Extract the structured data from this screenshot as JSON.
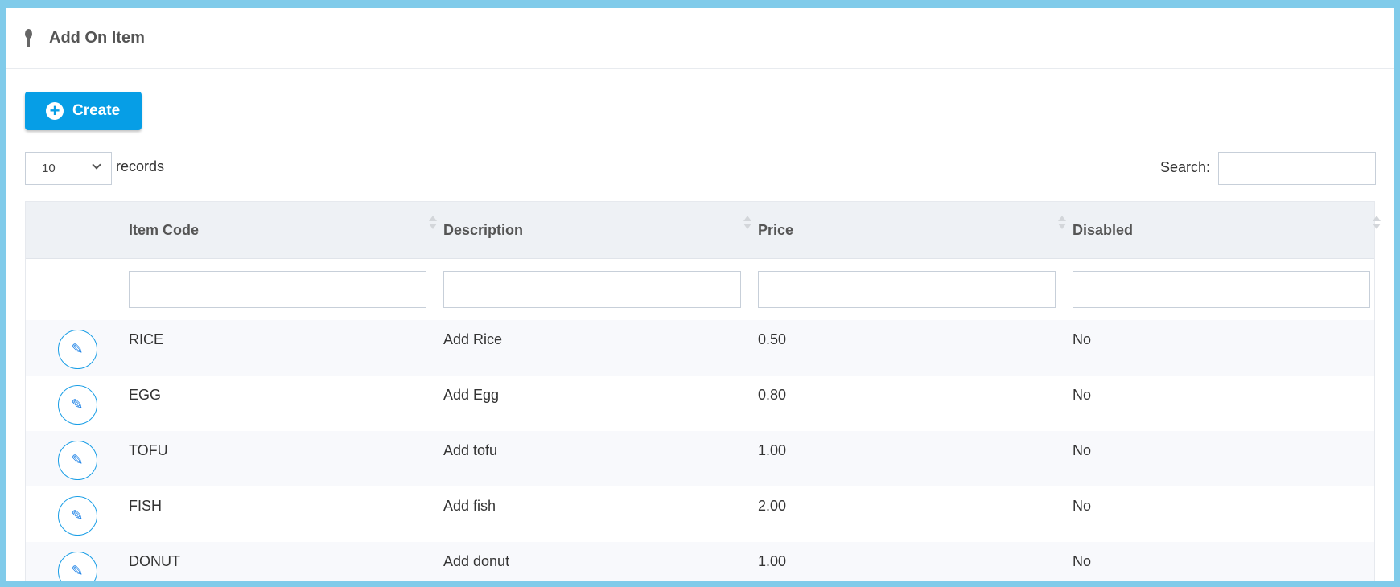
{
  "header": {
    "title": "Add On Item",
    "icon": "spoon-icon"
  },
  "toolbar": {
    "create_label": "Create"
  },
  "length": {
    "value": "10",
    "suffix": "records"
  },
  "search": {
    "label": "Search:",
    "value": ""
  },
  "table": {
    "columns": [
      "Item Code",
      "Description",
      "Price",
      "Disabled"
    ],
    "rows": [
      [
        "RICE",
        "Add Rice",
        "0.50",
        "No"
      ],
      [
        "EGG",
        "Add Egg",
        "0.80",
        "No"
      ],
      [
        "TOFU",
        "Add tofu",
        "1.00",
        "No"
      ],
      [
        "FISH",
        "Add fish",
        "2.00",
        "No"
      ],
      [
        "DONUT",
        "Add donut",
        "1.00",
        "No"
      ]
    ]
  },
  "colors": {
    "accent": "#069ee6",
    "frame": "#80cbea"
  }
}
